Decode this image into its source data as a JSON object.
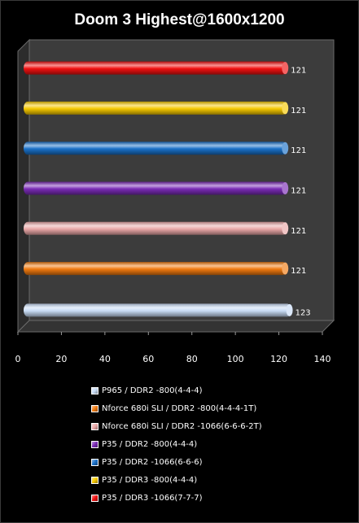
{
  "chart_data": {
    "type": "bar",
    "orientation": "horizontal",
    "title": "Doom 3 Highest@1600x1200",
    "xlabel": "",
    "ylabel": "",
    "xlim": [
      0,
      140
    ],
    "x_ticks": [
      0,
      20,
      40,
      60,
      80,
      100,
      120,
      140
    ],
    "grid": false,
    "legend_position": "bottom",
    "series": [
      {
        "name": "P965 / DDR2 -800(4-4-4)",
        "value": 123,
        "color": "#c8dcf5"
      },
      {
        "name": "Nforce 680i SLI / DDR2 -800(4-4-4-1T)",
        "value": 121,
        "color": "#f07a10"
      },
      {
        "name": "Nforce 680i SLI / DDR2 -1066(6-6-6-2T)",
        "value": 121,
        "color": "#eaa8a8"
      },
      {
        "name": "P35 / DDR2 -800(4-4-4)",
        "value": 121,
        "color": "#7a2bb5"
      },
      {
        "name": "P35 / DDR2 -1066(6-6-6)",
        "value": 121,
        "color": "#1a70c8"
      },
      {
        "name": "P35 / DDR3 -800(4-4-4)",
        "value": 121,
        "color": "#f5c800"
      },
      {
        "name": "P35 / DDR3 -1066(7-7-7)",
        "value": 121,
        "color": "#f01010"
      }
    ]
  }
}
